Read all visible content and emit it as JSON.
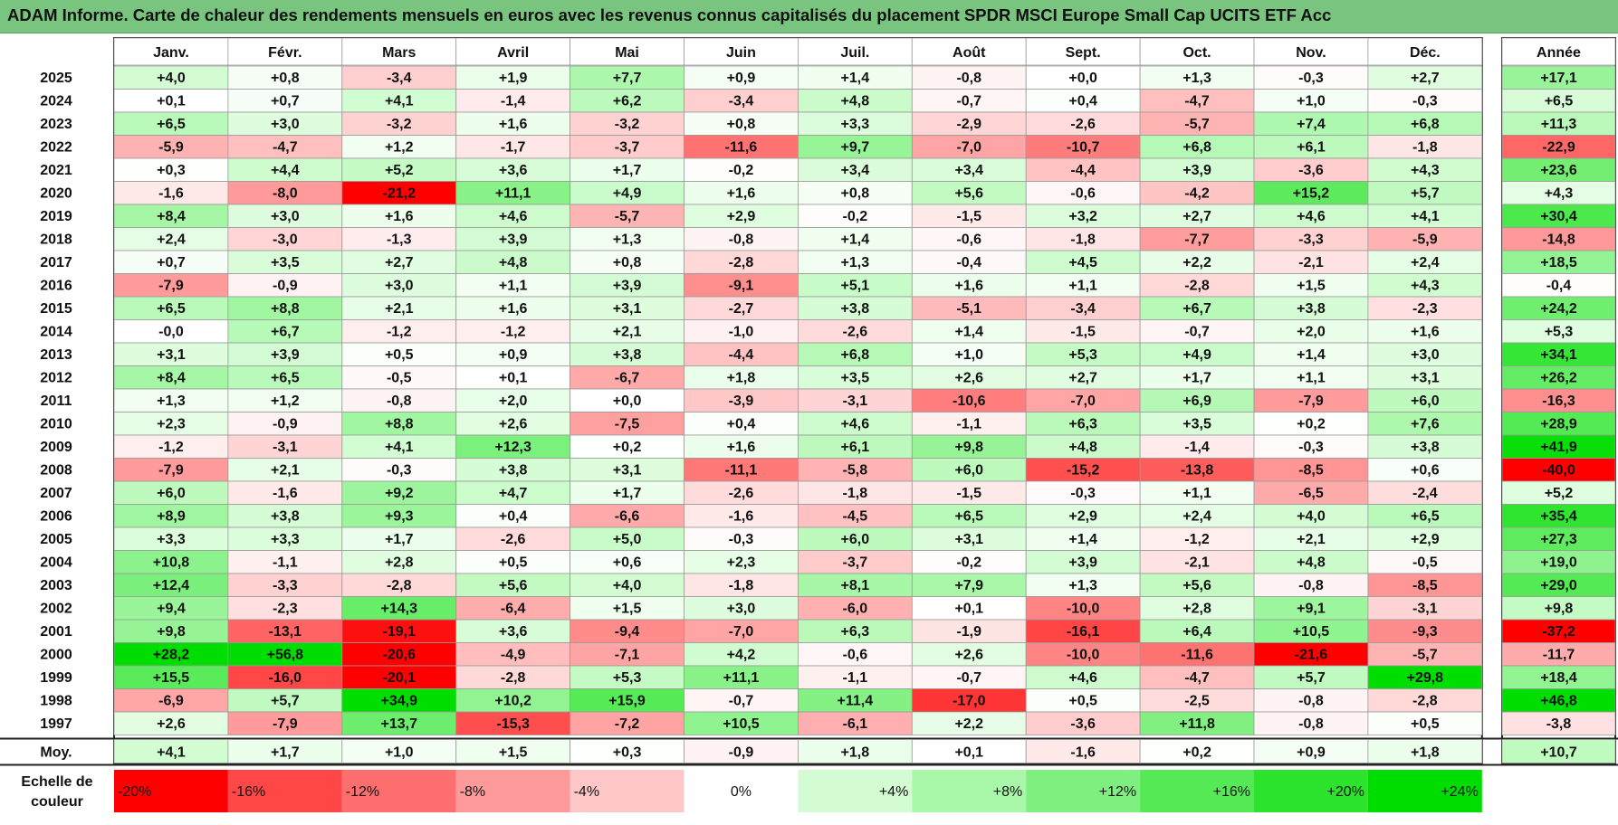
{
  "title": "ADAM Informe. Carte de chaleur des rendements mensuels en euros avec les revenus connus capitalisés du placement SPDR MSCI Europe Small Cap UCITS ETF Acc",
  "chart_data": {
    "type": "heatmap",
    "months": [
      "Janv.",
      "Févr.",
      "Mars",
      "Avril",
      "Mai",
      "Juin",
      "Juil.",
      "Août",
      "Sept.",
      "Oct.",
      "Nov.",
      "Déc."
    ],
    "year_header": "Année",
    "rows": [
      {
        "year": "2025",
        "values": [
          "+4,0",
          "+0,8",
          "-3,4",
          "+1,9",
          "+7,7",
          "+0,9",
          "+1,4",
          "-0,8",
          "+0,0",
          "+1,3",
          "-0,3",
          "+2,7"
        ],
        "total": "+17,1"
      },
      {
        "year": "2024",
        "values": [
          "+0,1",
          "+0,7",
          "+4,1",
          "-1,4",
          "+6,2",
          "-3,4",
          "+4,8",
          "-0,7",
          "+0,4",
          "-4,7",
          "+1,0",
          "-0,3"
        ],
        "total": "+6,5"
      },
      {
        "year": "2023",
        "values": [
          "+6,5",
          "+3,0",
          "-3,2",
          "+1,6",
          "-3,2",
          "+0,8",
          "+3,3",
          "-2,9",
          "-2,6",
          "-5,7",
          "+7,4",
          "+6,8"
        ],
        "total": "+11,3"
      },
      {
        "year": "2022",
        "values": [
          "-5,9",
          "-4,7",
          "+1,2",
          "-1,7",
          "-3,7",
          "-11,6",
          "+9,7",
          "-7,0",
          "-10,7",
          "+6,8",
          "+6,1",
          "-1,8"
        ],
        "total": "-22,9"
      },
      {
        "year": "2021",
        "values": [
          "+0,3",
          "+4,4",
          "+5,2",
          "+3,6",
          "+1,7",
          "-0,2",
          "+3,4",
          "+3,4",
          "-4,4",
          "+3,9",
          "-3,6",
          "+4,3"
        ],
        "total": "+23,6"
      },
      {
        "year": "2020",
        "values": [
          "-1,6",
          "-8,0",
          "-21,2",
          "+11,1",
          "+4,9",
          "+1,6",
          "+0,8",
          "+5,6",
          "-0,6",
          "-4,2",
          "+15,2",
          "+5,7"
        ],
        "total": "+4,3"
      },
      {
        "year": "2019",
        "values": [
          "+8,4",
          "+3,0",
          "+1,6",
          "+4,6",
          "-5,7",
          "+2,9",
          "-0,2",
          "-1,5",
          "+3,2",
          "+2,7",
          "+4,6",
          "+4,1"
        ],
        "total": "+30,4"
      },
      {
        "year": "2018",
        "values": [
          "+2,4",
          "-3,0",
          "-1,3",
          "+3,9",
          "+1,3",
          "-0,8",
          "+1,4",
          "-0,6",
          "-1,8",
          "-7,7",
          "-3,3",
          "-5,9"
        ],
        "total": "-14,8"
      },
      {
        "year": "2017",
        "values": [
          "+0,7",
          "+3,5",
          "+2,7",
          "+4,8",
          "+0,8",
          "-2,8",
          "+1,3",
          "-0,4",
          "+4,5",
          "+2,2",
          "-2,1",
          "+2,4"
        ],
        "total": "+18,5"
      },
      {
        "year": "2016",
        "values": [
          "-7,9",
          "-0,9",
          "+3,0",
          "+1,1",
          "+3,9",
          "-9,1",
          "+5,1",
          "+1,6",
          "+1,1",
          "-2,8",
          "+1,5",
          "+4,3"
        ],
        "total": "-0,4"
      },
      {
        "year": "2015",
        "values": [
          "+6,5",
          "+8,8",
          "+2,1",
          "+1,6",
          "+3,1",
          "-2,7",
          "+3,8",
          "-5,1",
          "-3,4",
          "+6,7",
          "+3,8",
          "-2,3"
        ],
        "total": "+24,2"
      },
      {
        "year": "2014",
        "values": [
          "-0,0",
          "+6,7",
          "-1,2",
          "-1,2",
          "+2,1",
          "-1,0",
          "-2,6",
          "+1,4",
          "-1,5",
          "-0,7",
          "+2,0",
          "+1,6"
        ],
        "total": "+5,3"
      },
      {
        "year": "2013",
        "values": [
          "+3,1",
          "+3,9",
          "+0,5",
          "+0,9",
          "+3,8",
          "-4,4",
          "+6,8",
          "+1,0",
          "+5,3",
          "+4,9",
          "+1,4",
          "+3,0"
        ],
        "total": "+34,1"
      },
      {
        "year": "2012",
        "values": [
          "+8,4",
          "+6,5",
          "-0,5",
          "+0,1",
          "-6,7",
          "+1,8",
          "+3,5",
          "+2,6",
          "+2,7",
          "+1,7",
          "+1,1",
          "+3,1"
        ],
        "total": "+26,2"
      },
      {
        "year": "2011",
        "values": [
          "+1,3",
          "+1,2",
          "-0,8",
          "+2,0",
          "+0,0",
          "-3,9",
          "-3,1",
          "-10,6",
          "-7,0",
          "+6,9",
          "-7,9",
          "+6,0"
        ],
        "total": "-16,3"
      },
      {
        "year": "2010",
        "values": [
          "+2,3",
          "-0,9",
          "+8,8",
          "+2,6",
          "-7,5",
          "+0,4",
          "+4,6",
          "-1,1",
          "+6,3",
          "+3,5",
          "+0,2",
          "+7,6"
        ],
        "total": "+28,9"
      },
      {
        "year": "2009",
        "values": [
          "-1,2",
          "-3,1",
          "+4,1",
          "+12,3",
          "+0,2",
          "+1,6",
          "+6,1",
          "+9,8",
          "+4,8",
          "-1,4",
          "-0,3",
          "+3,8"
        ],
        "total": "+41,9"
      },
      {
        "year": "2008",
        "values": [
          "-7,9",
          "+2,1",
          "-0,3",
          "+3,8",
          "+3,1",
          "-11,1",
          "-5,8",
          "+6,0",
          "-15,2",
          "-13,8",
          "-8,5",
          "+0,6"
        ],
        "total": "-40,0"
      },
      {
        "year": "2007",
        "values": [
          "+6,0",
          "-1,6",
          "+9,2",
          "+4,7",
          "+1,7",
          "-2,6",
          "-1,8",
          "-1,5",
          "-0,3",
          "+1,1",
          "-6,5",
          "-2,4"
        ],
        "total": "+5,2"
      },
      {
        "year": "2006",
        "values": [
          "+8,9",
          "+3,8",
          "+9,3",
          "+0,4",
          "-6,6",
          "-1,6",
          "-4,5",
          "+6,5",
          "+2,9",
          "+2,4",
          "+4,0",
          "+6,5"
        ],
        "total": "+35,4"
      },
      {
        "year": "2005",
        "values": [
          "+3,3",
          "+3,3",
          "+1,7",
          "-2,6",
          "+5,0",
          "-0,3",
          "+6,0",
          "+3,1",
          "+1,4",
          "-1,2",
          "+2,1",
          "+2,9"
        ],
        "total": "+27,3"
      },
      {
        "year": "2004",
        "values": [
          "+10,8",
          "-1,1",
          "+2,8",
          "+0,5",
          "+0,6",
          "+2,3",
          "-3,7",
          "-0,2",
          "+3,9",
          "-2,1",
          "+4,8",
          "-0,5"
        ],
        "total": "+19,0"
      },
      {
        "year": "2003",
        "values": [
          "+12,4",
          "-3,3",
          "-2,8",
          "+5,6",
          "+4,0",
          "-1,8",
          "+8,1",
          "+7,9",
          "+1,3",
          "+5,6",
          "-0,8",
          "-8,5"
        ],
        "total": "+29,0"
      },
      {
        "year": "2002",
        "values": [
          "+9,4",
          "-2,3",
          "+14,3",
          "-6,4",
          "+1,5",
          "+3,0",
          "-6,0",
          "+0,1",
          "-10,0",
          "+2,8",
          "+9,1",
          "-3,1"
        ],
        "total": "+9,8"
      },
      {
        "year": "2001",
        "values": [
          "+9,8",
          "-13,1",
          "-19,1",
          "+3,6",
          "-9,4",
          "-7,0",
          "+6,3",
          "-1,9",
          "-16,1",
          "+6,4",
          "+10,5",
          "-9,3"
        ],
        "total": "-37,2"
      },
      {
        "year": "2000",
        "values": [
          "+28,2",
          "+56,8",
          "-20,6",
          "-4,9",
          "-7,1",
          "+4,2",
          "-0,6",
          "+2,6",
          "-10,0",
          "-11,6",
          "-21,6",
          "-5,7"
        ],
        "total": "-11,7"
      },
      {
        "year": "1999",
        "values": [
          "+15,5",
          "-16,0",
          "-20,1",
          "-2,8",
          "+5,3",
          "+11,1",
          "-1,1",
          "-0,7",
          "+4,6",
          "-4,7",
          "+5,7",
          "+29,8"
        ],
        "total": "+18,4"
      },
      {
        "year": "1998",
        "values": [
          "-6,9",
          "+5,7",
          "+34,9",
          "+10,2",
          "+15,9",
          "-0,7",
          "+11,4",
          "-17,0",
          "+0,5",
          "-2,5",
          "-0,8",
          "-2,8"
        ],
        "total": "+46,8"
      },
      {
        "year": "1997",
        "values": [
          "+2,6",
          "-7,9",
          "+13,7",
          "-15,3",
          "-7,2",
          "+10,5",
          "-6,1",
          "+2,2",
          "-3,6",
          "+11,8",
          "-0,8",
          "+0,5"
        ],
        "total": "-3,8"
      }
    ],
    "average": {
      "label": "Moy.",
      "values": [
        "+4,1",
        "+1,7",
        "+1,0",
        "+1,5",
        "+0,3",
        "-0,9",
        "+1,8",
        "+0,1",
        "-1,6",
        "+0,2",
        "+0,9",
        "+1,8"
      ],
      "total": "+10,7"
    },
    "scale": {
      "label_line1": "Echelle de",
      "label_line2": "couleur",
      "steps": [
        {
          "label": "-20%",
          "value": -20,
          "color": "#ff0000"
        },
        {
          "label": "-16%",
          "value": -16,
          "color": "#ff4747"
        },
        {
          "label": "-12%",
          "value": -12,
          "color": "#ff6e6e"
        },
        {
          "label": "-8%",
          "value": -8,
          "color": "#ff9a9a"
        },
        {
          "label": "-4%",
          "value": -4,
          "color": "#ffc7c7"
        },
        {
          "label": "0%",
          "value": 0,
          "color": "#ffffff"
        },
        {
          "label": "+4%",
          "value": 4,
          "color": "#d3fcd3"
        },
        {
          "label": "+8%",
          "value": 8,
          "color": "#a9f7a9"
        },
        {
          "label": "+12%",
          "value": 12,
          "color": "#7ff07f"
        },
        {
          "label": "+16%",
          "value": 16,
          "color": "#55ea55"
        },
        {
          "label": "+20%",
          "value": 20,
          "color": "#2be42b"
        },
        {
          "label": "+24%",
          "value": 24,
          "color": "#00dd00"
        }
      ]
    }
  }
}
